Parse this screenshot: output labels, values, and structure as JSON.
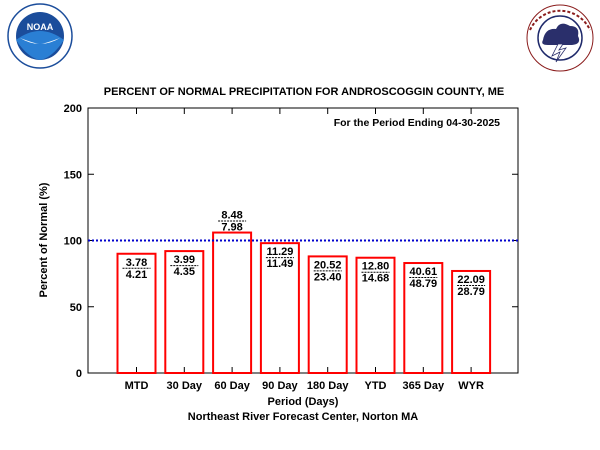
{
  "logos": {
    "noaa": {
      "text": "NOAA",
      "ring_text": "NATIONAL OCEANIC AND ATMOSPHERIC ADMINISTRATION · U.S. DEPARTMENT OF COMMERCE"
    },
    "nws": {
      "ring_text": "NATIONAL WEATHER SERVICE"
    }
  },
  "chart_data": {
    "type": "bar",
    "title": "PERCENT OF NORMAL PRECIPITATION FOR ANDROSCOGGIN COUNTY, ME",
    "subtitle": "For the Period Ending 04-30-2025",
    "xlabel": "Period (Days)",
    "ylabel": "Percent of Normal (%)",
    "footer": "Northeast River Forecast Center, Norton MA",
    "ylim": [
      0,
      200
    ],
    "yticks": [
      "0",
      "50",
      "100",
      "150",
      "200"
    ],
    "reference_line": 100,
    "categories": [
      "MTD",
      "30 Day",
      "60 Day",
      "90 Day",
      "180 Day",
      "YTD",
      "365 Day",
      "WYR"
    ],
    "values": [
      90,
      92,
      106,
      98,
      88,
      87,
      83,
      77
    ],
    "observed": [
      "3.78",
      "3.99",
      "8.48",
      "11.29",
      "20.52",
      "12.80",
      "40.61",
      "22.09"
    ],
    "normal": [
      "4.21",
      "4.35",
      "7.98",
      "11.49",
      "23.40",
      "14.68",
      "48.79",
      "28.79"
    ],
    "colors": {
      "bar": "#ff0000",
      "reference_line": "#0000cc"
    },
    "grid": false,
    "legend": "none"
  }
}
